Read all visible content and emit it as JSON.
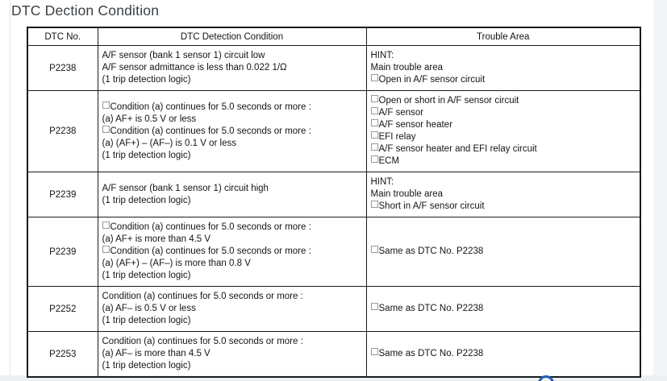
{
  "page": {
    "title": "DTC Dection Condition"
  },
  "table": {
    "headers": [
      "DTC No.",
      "DTC Detection Condition",
      "Trouble Area"
    ],
    "rows": [
      {
        "dtc_no": "P2238",
        "conditions": [
          {
            "bullet": false,
            "text": "A/F sensor (bank 1 sensor 1) circuit low"
          },
          {
            "bullet": false,
            "text": "A/F sensor admittance is less than 0.022 1/Ω"
          },
          {
            "bullet": false,
            "text": "(1 trip detection logic)"
          }
        ],
        "trouble_areas": [
          {
            "bullet": false,
            "text": "HINT:"
          },
          {
            "bullet": false,
            "text": "Main trouble area"
          },
          {
            "bullet": true,
            "text": "Open in A/F sensor circuit"
          }
        ]
      },
      {
        "dtc_no": "P2238",
        "conditions": [
          {
            "bullet": true,
            "text": "Condition (a) continues for 5.0 seconds or more :"
          },
          {
            "bullet": false,
            "text": "(a) AF+ is 0.5 V or less"
          },
          {
            "bullet": true,
            "text": "Condition (a) continues for 5.0 seconds or more :"
          },
          {
            "bullet": false,
            "text": "(a) (AF+) – (AF–) is 0.1 V or less"
          },
          {
            "bullet": false,
            "text": "(1 trip detection logic)"
          }
        ],
        "trouble_areas": [
          {
            "bullet": true,
            "text": "Open or short in A/F sensor circuit"
          },
          {
            "bullet": true,
            "text": "A/F sensor"
          },
          {
            "bullet": true,
            "text": "A/F sensor heater"
          },
          {
            "bullet": true,
            "text": "EFI relay"
          },
          {
            "bullet": true,
            "text": "A/F sensor heater and EFI relay circuit"
          },
          {
            "bullet": true,
            "text": "ECM"
          }
        ]
      },
      {
        "dtc_no": "P2239",
        "conditions": [
          {
            "bullet": false,
            "text": "A/F sensor (bank 1 sensor 1) circuit high"
          },
          {
            "bullet": false,
            "text": "(1 trip detection logic)"
          }
        ],
        "trouble_areas": [
          {
            "bullet": false,
            "text": "HINT:"
          },
          {
            "bullet": false,
            "text": "Main trouble area"
          },
          {
            "bullet": true,
            "text": "Short in A/F sensor circuit"
          }
        ]
      },
      {
        "dtc_no": "P2239",
        "conditions": [
          {
            "bullet": true,
            "text": "Condition (a) continues for 5.0 seconds or more :"
          },
          {
            "bullet": false,
            "text": "(a) AF+ is more than 4.5 V"
          },
          {
            "bullet": true,
            "text": "Condition (a) continues for 5.0 seconds or more :"
          },
          {
            "bullet": false,
            "text": "(a) (AF+) – (AF–) is more than 0.8 V"
          },
          {
            "bullet": false,
            "text": "(1 trip detection logic)"
          }
        ],
        "trouble_areas": [
          {
            "bullet": true,
            "text": "Same as DTC No. P2238"
          }
        ]
      },
      {
        "dtc_no": "P2252",
        "conditions": [
          {
            "bullet": false,
            "text": "Condition (a) continues for 5.0 seconds or more :"
          },
          {
            "bullet": false,
            "text": "(a) AF– is 0.5 V or less"
          },
          {
            "bullet": false,
            "text": "(1 trip detection logic)"
          }
        ],
        "trouble_areas": [
          {
            "bullet": true,
            "text": "Same as DTC No. P2238"
          }
        ]
      },
      {
        "dtc_no": "P2253",
        "conditions": [
          {
            "bullet": false,
            "text": "Condition (a) continues for 5.0 seconds or more :"
          },
          {
            "bullet": false,
            "text": "(a) AF– is more than 4.5 V"
          },
          {
            "bullet": false,
            "text": "(1 trip detection logic)"
          }
        ],
        "trouble_areas": [
          {
            "bullet": true,
            "text": "Same as DTC No. P2238"
          }
        ]
      }
    ]
  },
  "footer": {
    "icon": "blue-circle-arc-partial"
  },
  "colors": {
    "accent_blue": "#2160ae",
    "table_border": "#1b1b1b",
    "bullet_border": "#979ba0",
    "title_text": "#3b4045",
    "page_edge_gray": "#edf0f3"
  }
}
